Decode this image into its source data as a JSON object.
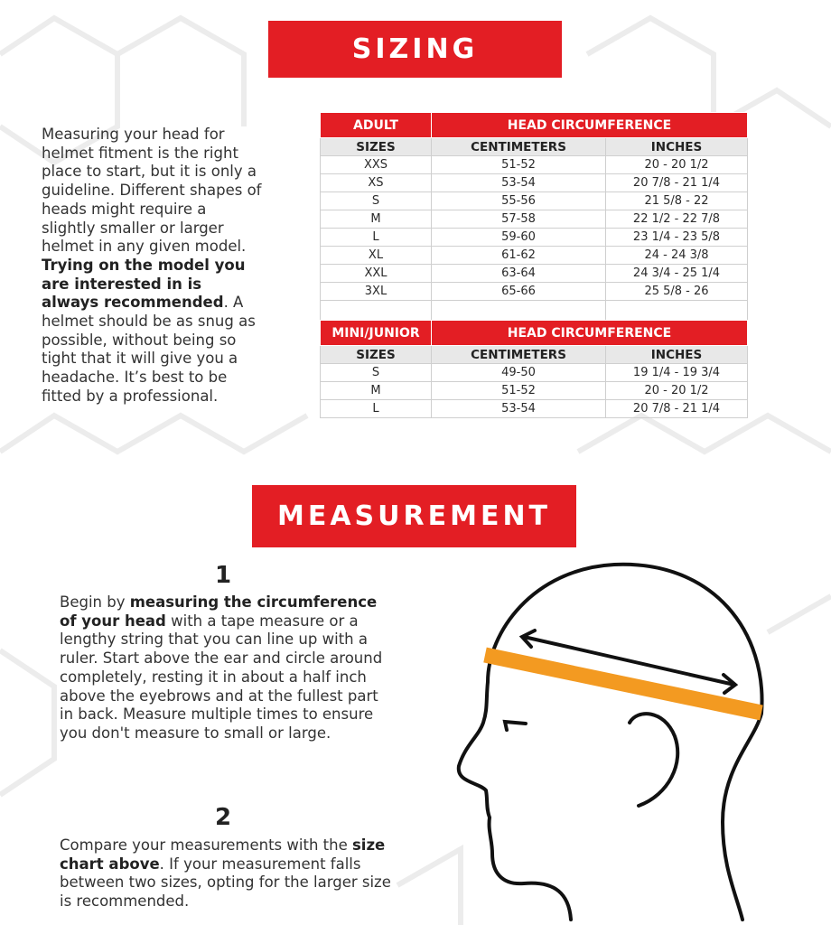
{
  "colors": {
    "accent": "#e31e24",
    "band": "#f39a21"
  },
  "sizing": {
    "title": "SIZING"
  },
  "intro": {
    "p1": "Measuring your head for helmet fitment is the right place to start, but it is only a guideline. Different shapes of heads might require a slightly smaller or larger helmet in any given model. ",
    "bold": "Trying on the model you are interested in is always recommended",
    "p2": ". A helmet should be as snug as possible, without being so tight that it will give you a headache. It’s best to be fitted by a professional."
  },
  "adult_table": {
    "group": "ADULT",
    "span": "HEAD CIRCUMFERENCE",
    "headers": [
      "SIZES",
      "CENTIMETERS",
      "INCHES"
    ],
    "rows": [
      [
        "XXS",
        "51-52",
        "20 - 20 1/2"
      ],
      [
        "XS",
        "53-54",
        "20 7/8 - 21 1/4"
      ],
      [
        "S",
        "55-56",
        "21 5/8 - 22"
      ],
      [
        "M",
        "57-58",
        "22 1/2 - 22 7/8"
      ],
      [
        "L",
        "59-60",
        "23 1/4 - 23 5/8"
      ],
      [
        "XL",
        "61-62",
        "24 - 24 3/8"
      ],
      [
        "XXL",
        "63-64",
        "24 3/4 - 25 1/4"
      ],
      [
        "3XL",
        "65-66",
        "25 5/8 - 26"
      ]
    ]
  },
  "junior_table": {
    "group": "MINI/JUNIOR",
    "span": "HEAD CIRCUMFERENCE",
    "headers": [
      "SIZES",
      "CENTIMETERS",
      "INCHES"
    ],
    "rows": [
      [
        "S",
        "49-50",
        "19 1/4 - 19 3/4"
      ],
      [
        "M",
        "51-52",
        "20 - 20 1/2"
      ],
      [
        "L",
        "53-54",
        "20 7/8 - 21 1/4"
      ]
    ]
  },
  "measurement": {
    "title": "MEASUREMENT",
    "step1": {
      "num": "1",
      "t1": "Begin by ",
      "b1": "measuring the circumference of your head",
      "t2": " with a tape measure or a lengthy string that you can line up with a ruler. Start above the ear and circle around completely, resting it in about a half inch above the eyebrows and at the fullest part in back. Measure multiple times to ensure you don't measure to small or large."
    },
    "step2": {
      "num": "2",
      "t1": "Compare your measurements with the ",
      "b1": "size chart above",
      "t2": ". If your measurement falls between two sizes, opting for the larger size is recommended."
    }
  }
}
